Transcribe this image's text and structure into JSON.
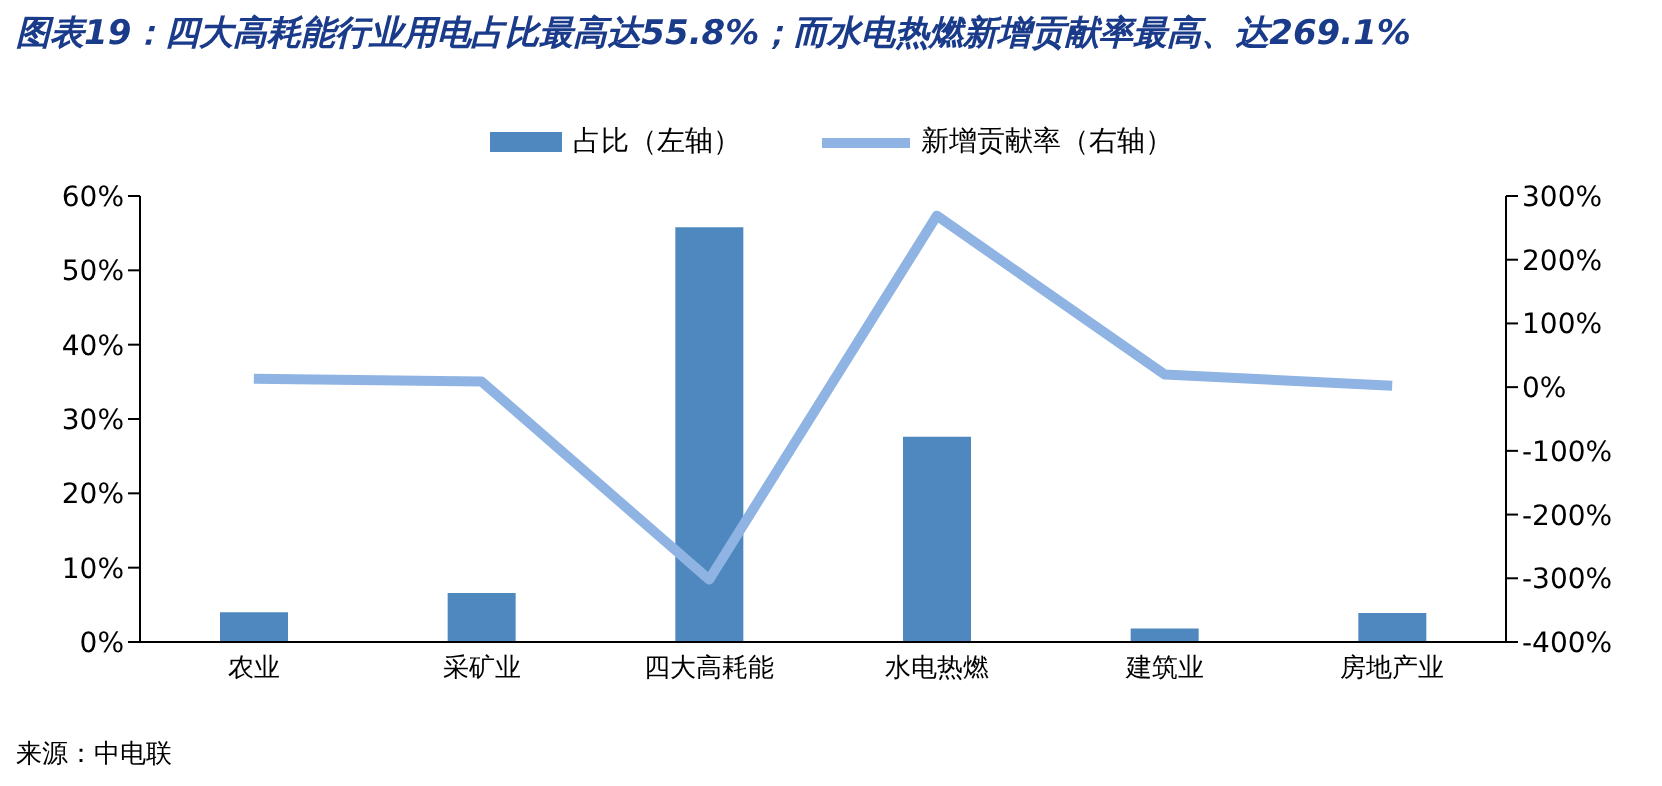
{
  "chart_data": {
    "type": "bar",
    "title": "图表19：四大高耗能行业用电占比最高达55.8%；而水电热燃新增贡献率最高、达269.1%",
    "categories": [
      "农业",
      "采矿业",
      "四大高耗能",
      "水电热燃",
      "建筑业",
      "房地产业"
    ],
    "series": [
      {
        "name": "占比（左轴）",
        "color": "#4f88be",
        "values": [
          4.0,
          6.6,
          55.8,
          27.6,
          1.8,
          3.9
        ]
      },
      {
        "name": "新增贡献率（右轴）",
        "type": "line",
        "axis": "y2",
        "color": "#8fb4e3",
        "values": [
          13,
          9,
          -302,
          269.1,
          20,
          2
        ]
      }
    ],
    "ylim": [
      0,
      60
    ],
    "yticks": [
      {
        "value": 0,
        "label": "0%"
      },
      {
        "value": 10,
        "label": "10%"
      },
      {
        "value": 20,
        "label": "20%"
      },
      {
        "value": 30,
        "label": "30%"
      },
      {
        "value": 40,
        "label": "40%"
      },
      {
        "value": 50,
        "label": "50%"
      },
      {
        "value": 60,
        "label": "60%"
      }
    ],
    "y2lim": [
      -400,
      300
    ],
    "y2ticks": [
      {
        "value": -400,
        "label": "-400%"
      },
      {
        "value": -300,
        "label": "-300%"
      },
      {
        "value": -200,
        "label": "-200%"
      },
      {
        "value": -100,
        "label": "-100%"
      },
      {
        "value": 0,
        "label": "0%"
      },
      {
        "value": 100,
        "label": "100%"
      },
      {
        "value": 200,
        "label": "200%"
      },
      {
        "value": 300,
        "label": "300%"
      }
    ],
    "annotations": [
      "来源：中电联"
    ],
    "legend": "top",
    "grid": false,
    "marker": "none"
  }
}
